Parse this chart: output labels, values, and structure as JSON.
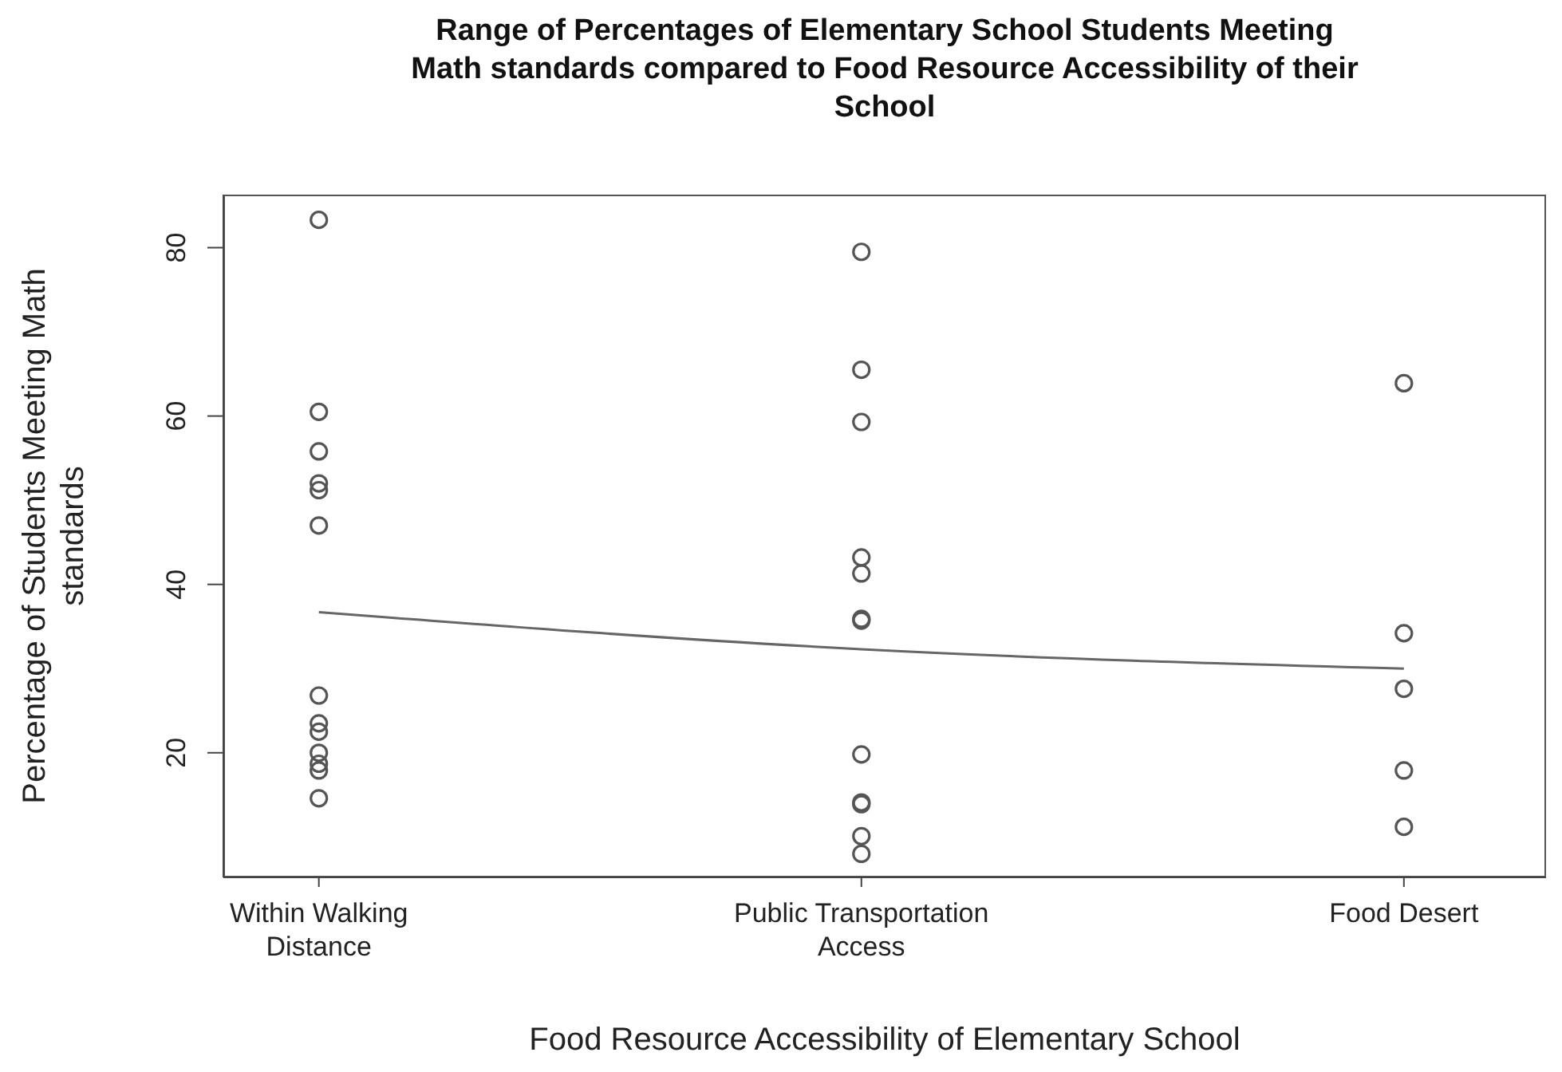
{
  "chart_data": {
    "type": "scatter",
    "title": "Range of Percentages of Elementary School Students Meeting Math standards compared to Food Resource Accessibility of their School",
    "xlabel": "Food Resource Accessibility of Elementary School",
    "ylabel": "Percentage of Students Meeting Math standards",
    "categories": [
      "Within Walking Distance",
      "Public Transportation Access",
      "Food Desert"
    ],
    "series": [
      {
        "type": "scatter",
        "color": "#555555",
        "x": [
          "Within Walking Distance",
          "Within Walking Distance",
          "Within Walking Distance",
          "Within Walking Distance",
          "Within Walking Distance",
          "Within Walking Distance",
          "Within Walking Distance",
          "Within Walking Distance",
          "Within Walking Distance",
          "Within Walking Distance",
          "Within Walking Distance",
          "Within Walking Distance",
          "Within Walking Distance",
          "Public Transportation Access",
          "Public Transportation Access",
          "Public Transportation Access",
          "Public Transportation Access",
          "Public Transportation Access",
          "Public Transportation Access",
          "Public Transportation Access",
          "Public Transportation Access",
          "Public Transportation Access",
          "Public Transportation Access",
          "Public Transportation Access",
          "Public Transportation Access",
          "Public Transportation Access",
          "Food Desert",
          "Food Desert",
          "Food Desert",
          "Food Desert",
          "Food Desert"
        ],
        "values": [
          83.3,
          60.5,
          55.8,
          52.0,
          51.2,
          47.0,
          26.8,
          23.5,
          22.5,
          20.0,
          18.7,
          17.9,
          14.6,
          79.5,
          65.5,
          59.3,
          43.2,
          41.3,
          35.9,
          35.7,
          19.8,
          14.1,
          13.9,
          10.1,
          8.0,
          null,
          63.9,
          34.2,
          27.6,
          17.9,
          11.2
        ]
      },
      {
        "type": "line",
        "color": "#666666",
        "marker": "none",
        "x": [
          "Within Walking Distance",
          "Public Transportation Access",
          "Food Desert"
        ],
        "values": [
          36.7,
          32.3,
          30.0
        ]
      }
    ],
    "marker": "circle",
    "ylim": [
      5.2,
      86.3
    ],
    "yticks": [
      20,
      40,
      60,
      80
    ]
  }
}
